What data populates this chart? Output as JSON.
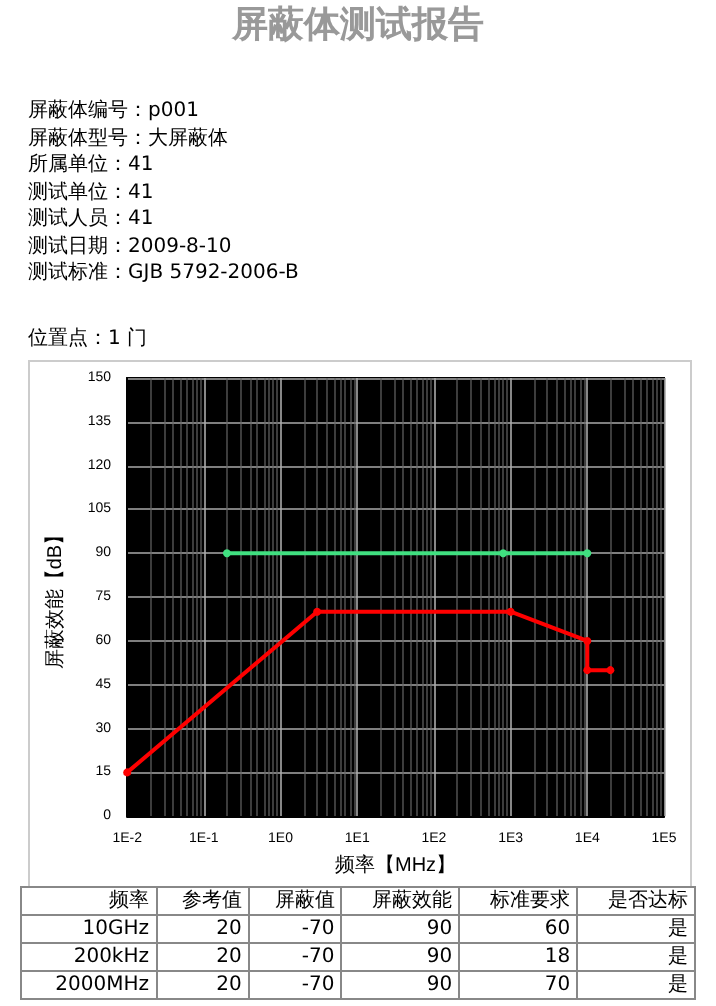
{
  "chart_data": {
    "type": "line",
    "title": "屏蔽体测试报告",
    "xlabel": "频率【MHz】",
    "ylabel": "屏蔽效能【dB】",
    "annotations": [
      "屏蔽体编号：p001",
      "屏蔽体型号：大屏蔽体",
      "所属单位：41",
      "测试单位：41",
      "测试人员：41",
      "测试日期：2009-8-10",
      "测试标准：GJB 5792-2006-B",
      "位置点：1 门",
      "频率",
      "参考值",
      "屏蔽值",
      "屏蔽效能",
      "标准要求",
      "是否达标",
      "10GHz",
      "20",
      "-70",
      "90",
      "60",
      "是",
      "200kHz",
      "20",
      "-70",
      "90",
      "18",
      "是",
      "2000MHz",
      "20",
      "-70",
      "90",
      "70",
      "是"
    ],
    "series": [
      {
        "color": "#40e080",
        "x": [
          0.2,
          800,
          10000
        ],
        "values": [
          90,
          90,
          90
        ]
      },
      {
        "color": "#ff0000",
        "x": [
          0.01,
          3,
          1000,
          10000,
          10000,
          20000
        ],
        "values": [
          15,
          70,
          70,
          60,
          50,
          50
        ]
      }
    ],
    "log": "x",
    "xlim": [
      0.01,
      100000
    ],
    "xticks": [
      {
        "value": 0.01,
        "label": "1E-2"
      },
      {
        "value": 0.1,
        "label": "1E-1"
      },
      {
        "value": 1,
        "label": "1E0"
      },
      {
        "value": 10,
        "label": "1E1"
      },
      {
        "value": 100,
        "label": "1E2"
      },
      {
        "value": 1000,
        "label": "1E3"
      },
      {
        "value": 10000,
        "label": "1E4"
      },
      {
        "value": 100000,
        "label": "1E5"
      }
    ],
    "ylim": [
      0,
      150
    ],
    "yticks": [
      0,
      15,
      30,
      45,
      60,
      75,
      90,
      105,
      120,
      135,
      150
    ],
    "grid": true,
    "marker": "circle",
    "line_style": "solid"
  }
}
